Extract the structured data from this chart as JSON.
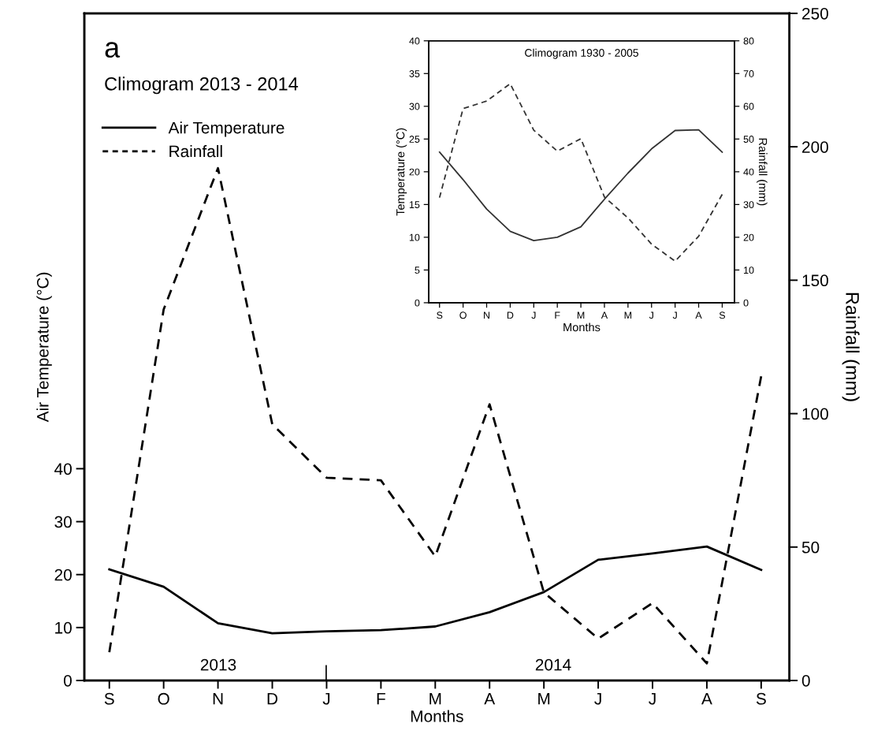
{
  "chart_data": [
    {
      "type": "line",
      "title": "Climogram 2013 - 2014",
      "xlabel": "Months",
      "ylabel": "Air Temperature (°C)",
      "y2label": "Rainfall (mm)",
      "categories": [
        "S",
        "O",
        "N",
        "D",
        "J",
        "F",
        "M",
        "A",
        "M",
        "J",
        "J",
        "A",
        "S"
      ],
      "series": [
        {
          "name": "Air Temperature",
          "color": "#000000",
          "line_style": "solid",
          "values": [
            21.0,
            17.7,
            10.8,
            8.9,
            9.3,
            9.5,
            10.2,
            12.9,
            16.7,
            22.8,
            24.0,
            25.3,
            20.9
          ]
        },
        {
          "name": "Rainfall",
          "color": "#000000",
          "line_style": "dashed",
          "axis": "y2",
          "values": [
            10.6,
            139,
            192,
            96,
            76,
            75,
            46.5,
            103.5,
            33,
            15.7,
            29,
            6.4,
            114
          ]
        }
      ],
      "ylim": [
        0,
        126
      ],
      "yticks": [
        0,
        10,
        20,
        30,
        40
      ],
      "y2lim": [
        0,
        250
      ],
      "y2ticks": [
        0,
        50,
        100,
        150,
        200,
        250
      ],
      "legend": "top left",
      "grid": false,
      "annotations": [
        "a",
        "2013",
        "|",
        "2014"
      ]
    },
    {
      "type": "line",
      "title": "Climogram 1930 - 2005",
      "xlabel": "Months",
      "ylabel": "Temperature (°C)",
      "y2label": "Rainfall (mm)",
      "categories": [
        "S",
        "O",
        "N",
        "D",
        "J",
        "F",
        "M",
        "A",
        "M",
        "J",
        "J",
        "A",
        "S"
      ],
      "series": [
        {
          "color": "#333333",
          "line_style": "solid",
          "values": [
            23.0,
            18.8,
            14.3,
            10.9,
            9.5,
            10.0,
            11.6,
            15.8,
            19.8,
            23.5,
            26.3,
            26.4,
            23.0
          ]
        },
        {
          "color": "#333333",
          "line_style": "dashed",
          "axis": "y2",
          "values": [
            32.1,
            59.3,
            61.6,
            66.9,
            52.7,
            46.3,
            50.1,
            32.3,
            25.9,
            17.9,
            12.7,
            20.3,
            33.1
          ]
        }
      ],
      "ylim": [
        0,
        40
      ],
      "yticks": [
        0,
        5,
        10,
        15,
        20,
        25,
        30,
        35,
        40
      ],
      "y2lim": [
        0,
        80
      ],
      "y2ticks": [
        0,
        10,
        20,
        30,
        40,
        50,
        60,
        70,
        80
      ],
      "legend": false,
      "grid": false
    }
  ]
}
